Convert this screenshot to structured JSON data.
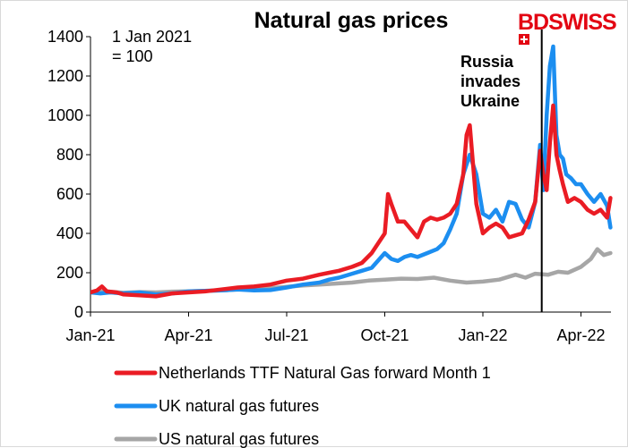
{
  "brand": "BDSWISS",
  "colors": {
    "ttf": "#ea1c24",
    "uk": "#1c8ef0",
    "us": "#a6a6a6",
    "axis": "#000000"
  },
  "chart_data": {
    "type": "line",
    "title": "Natural gas prices",
    "index_note_line1": "1 Jan 2021",
    "index_note_line2": "= 100",
    "annotation_lines": [
      "Russia",
      "invades",
      "Ukraine"
    ],
    "annotation_month": 13.8,
    "xlabel": "",
    "ylabel": "",
    "ylim": [
      0,
      1400
    ],
    "xlim": [
      0,
      15.3
    ],
    "yticks": [
      0,
      200,
      400,
      600,
      800,
      1000,
      1200,
      1400
    ],
    "xticks": [
      {
        "month": 0,
        "label": "Jan-21"
      },
      {
        "month": 3,
        "label": "Apr-21"
      },
      {
        "month": 6,
        "label": "Jul-21"
      },
      {
        "month": 9,
        "label": "Oct-21"
      },
      {
        "month": 12,
        "label": "Jan-22"
      },
      {
        "month": 15,
        "label": "Apr-22"
      }
    ],
    "series": [
      {
        "name": "US natural gas futures",
        "color_key": "us",
        "x": [
          0,
          0.5,
          1,
          1.5,
          2,
          2.5,
          3,
          3.5,
          4,
          4.5,
          5,
          5.5,
          6,
          6.5,
          7,
          7.5,
          8,
          8.5,
          9,
          9.5,
          10,
          10.5,
          11,
          11.5,
          12,
          12.5,
          13,
          13.3,
          13.6,
          14,
          14.3,
          14.6,
          15,
          15.3,
          15.5,
          15.7,
          15.9
        ],
        "y": [
          100,
          105,
          98,
          102,
          100,
          104,
          106,
          108,
          110,
          115,
          120,
          122,
          128,
          135,
          140,
          145,
          150,
          160,
          165,
          170,
          168,
          175,
          160,
          150,
          155,
          165,
          190,
          175,
          195,
          190,
          205,
          200,
          230,
          270,
          320,
          290,
          300
        ]
      },
      {
        "name": "UK natural gas futures",
        "color_key": "uk",
        "x": [
          0,
          0.3,
          0.6,
          1,
          1.5,
          2,
          2.5,
          3,
          3.5,
          4,
          4.5,
          5,
          5.5,
          6,
          6.5,
          7,
          7.3,
          7.6,
          8,
          8.3,
          8.6,
          9,
          9.2,
          9.4,
          9.6,
          9.8,
          10,
          10.3,
          10.6,
          10.8,
          11,
          11.2,
          11.4,
          11.6,
          11.8,
          12,
          12.2,
          12.4,
          12.6,
          12.8,
          13,
          13.2,
          13.4,
          13.6,
          13.75,
          13.85,
          13.95,
          14.05,
          14.15,
          14.25,
          14.35,
          14.45,
          14.55,
          14.7,
          14.85,
          15,
          15.2,
          15.4,
          15.6,
          15.8,
          15.9
        ],
        "y": [
          100,
          95,
          100,
          95,
          100,
          90,
          95,
          105,
          108,
          110,
          115,
          110,
          112,
          125,
          140,
          150,
          165,
          175,
          195,
          210,
          225,
          300,
          270,
          260,
          280,
          290,
          280,
          300,
          320,
          350,
          420,
          500,
          700,
          800,
          700,
          500,
          480,
          520,
          460,
          560,
          550,
          470,
          430,
          560,
          850,
          620,
          1000,
          1250,
          1350,
          900,
          800,
          780,
          700,
          680,
          650,
          650,
          600,
          560,
          600,
          540,
          430
        ]
      },
      {
        "name": "Netherlands TTF Natural Gas forward Month 1",
        "color_key": "ttf",
        "x": [
          0,
          0.2,
          0.35,
          0.5,
          0.8,
          1,
          1.5,
          2,
          2.5,
          3,
          3.5,
          4,
          4.5,
          5,
          5.5,
          6,
          6.5,
          7,
          7.3,
          7.6,
          8,
          8.3,
          8.6,
          8.8,
          9,
          9.1,
          9.2,
          9.4,
          9.6,
          9.8,
          10,
          10.2,
          10.4,
          10.6,
          10.8,
          11,
          11.2,
          11.4,
          11.5,
          11.6,
          11.8,
          12,
          12.2,
          12.4,
          12.6,
          12.8,
          13,
          13.2,
          13.4,
          13.6,
          13.75,
          13.85,
          13.95,
          14.05,
          14.15,
          14.25,
          14.35,
          14.45,
          14.6,
          14.8,
          15,
          15.2,
          15.4,
          15.6,
          15.8,
          15.9
        ],
        "y": [
          100,
          110,
          130,
          105,
          100,
          90,
          85,
          80,
          95,
          100,
          105,
          115,
          125,
          130,
          140,
          160,
          170,
          190,
          200,
          210,
          230,
          250,
          300,
          350,
          400,
          600,
          550,
          460,
          460,
          420,
          380,
          460,
          480,
          470,
          480,
          500,
          550,
          700,
          900,
          950,
          550,
          400,
          430,
          450,
          430,
          380,
          390,
          400,
          470,
          560,
          820,
          700,
          620,
          860,
          1050,
          800,
          720,
          650,
          560,
          580,
          560,
          520,
          500,
          520,
          480,
          580
        ]
      }
    ]
  }
}
